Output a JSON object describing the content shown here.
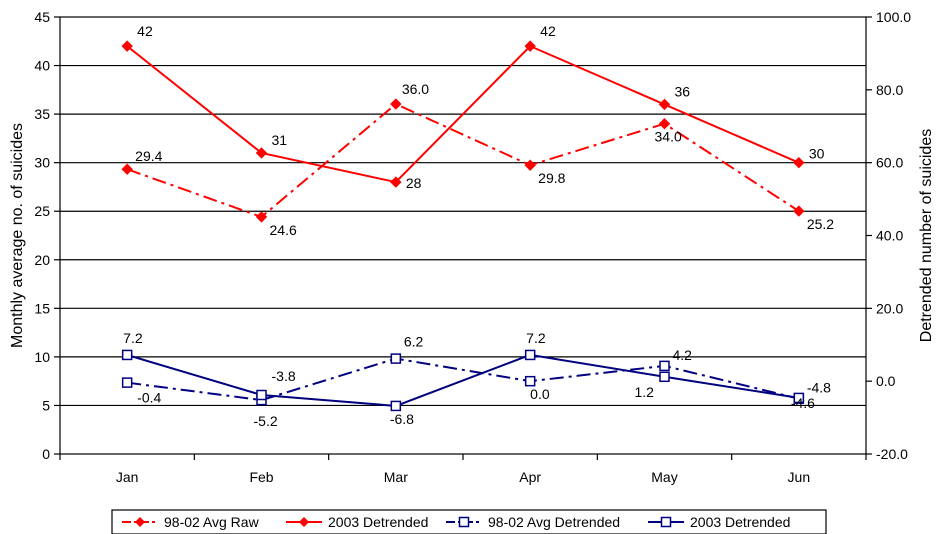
{
  "chart_data": {
    "type": "line",
    "categories": [
      "Jan",
      "Feb",
      "Mar",
      "Apr",
      "May",
      "Jun"
    ],
    "ylabel": "Monthly average no. of suicides",
    "y2label": "Detrended number of suicides",
    "ylim": [
      0,
      45
    ],
    "y_ticks": [
      "0",
      "5",
      "10",
      "15",
      "20",
      "25",
      "30",
      "35",
      "40",
      "45"
    ],
    "y2lim": [
      -20,
      100
    ],
    "y2_ticks": [
      "-20.0",
      "0.0",
      "20.0",
      "40.0",
      "60.0",
      "80.0",
      "100.0"
    ],
    "grid": true,
    "legend_position": "bottom",
    "series": [
      {
        "name": "98-02 Avg Raw",
        "axis": "right",
        "color": "#ff0000",
        "line_style": "dashdot",
        "marker": "filled-diamond",
        "values": [
          29.4,
          24.6,
          36.0,
          29.8,
          34.0,
          25.2
        ],
        "labels": [
          "29.4",
          "24.6",
          "36.0",
          "29.8",
          "34.0",
          "25.2"
        ],
        "y2_values": [
          58.2,
          45.1,
          76.1,
          59.3,
          70.7,
          46.7
        ]
      },
      {
        "name": "2003 Detrended",
        "axis": "left",
        "color": "#ff0000",
        "line_style": "solid",
        "marker": "filled-diamond",
        "values": [
          42,
          31,
          28,
          42,
          36,
          30
        ],
        "labels": [
          "42",
          "31",
          "28",
          "42",
          "36",
          "30"
        ]
      },
      {
        "name": "98-02 Avg Detrended",
        "axis": "right",
        "color": "#000080",
        "line_style": "dashdot",
        "marker": "open-square",
        "values": [
          -0.4,
          -5.2,
          6.2,
          0.0,
          4.2,
          -4.8
        ],
        "labels": [
          "-0.4",
          "-5.2",
          "6.2",
          "0.0",
          "4.2",
          "-4.8"
        ]
      },
      {
        "name": "2003 Detrended",
        "axis": "right",
        "color": "#000080",
        "line_style": "solid",
        "marker": "open-square",
        "values": [
          7.2,
          -3.8,
          -6.8,
          7.2,
          1.2,
          -4.6
        ],
        "labels": [
          "7.2",
          "-3.8",
          "-6.8",
          "7.2",
          "1.2",
          "-4.6"
        ]
      }
    ]
  }
}
